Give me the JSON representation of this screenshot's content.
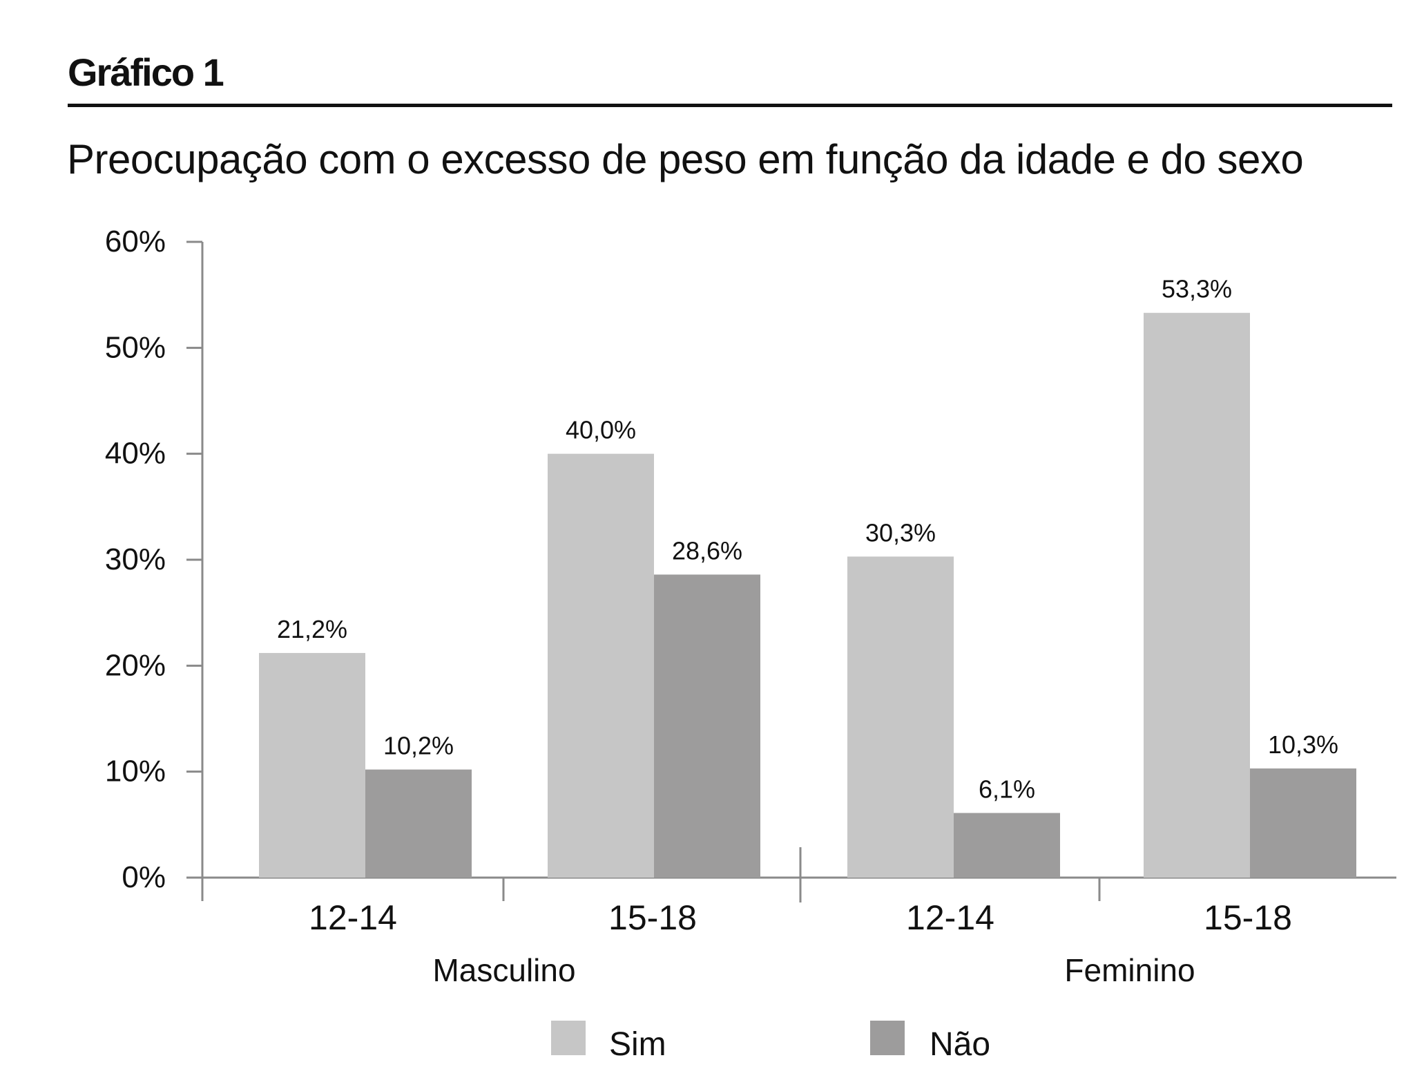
{
  "chart_data": {
    "type": "bar",
    "title": "Gráfico 1",
    "subtitle": "Preocupação com o excesso de peso em função da idade e do sexo",
    "xlabel": "",
    "ylabel": "",
    "ylim": [
      0,
      60
    ],
    "yticks": [
      "0%",
      "10%",
      "20%",
      "30%",
      "40%",
      "50%",
      "60%"
    ],
    "ytick_values": [
      0,
      10,
      20,
      30,
      40,
      50,
      60
    ],
    "grid": false,
    "categories": [
      "12-14",
      "15-18",
      "12-14",
      "15-18"
    ],
    "groups": [
      {
        "label": "Masculino",
        "categories": [
          0,
          1
        ]
      },
      {
        "label": "Feminino",
        "categories": [
          2,
          3
        ]
      }
    ],
    "series": [
      {
        "name": "Sim",
        "color": "#c6c6c6",
        "values": [
          21.2,
          40.0,
          30.3,
          53.3
        ],
        "labels": [
          "21,2%",
          "40,0%",
          "30,3%",
          "53,3%"
        ]
      },
      {
        "name": "Não",
        "color": "#9d9c9c",
        "values": [
          10.2,
          28.6,
          6.1,
          10.3
        ],
        "labels": [
          "10,2%",
          "28,6%",
          "6,1%",
          "10,3%"
        ]
      }
    ],
    "legend_position": "bottom"
  }
}
